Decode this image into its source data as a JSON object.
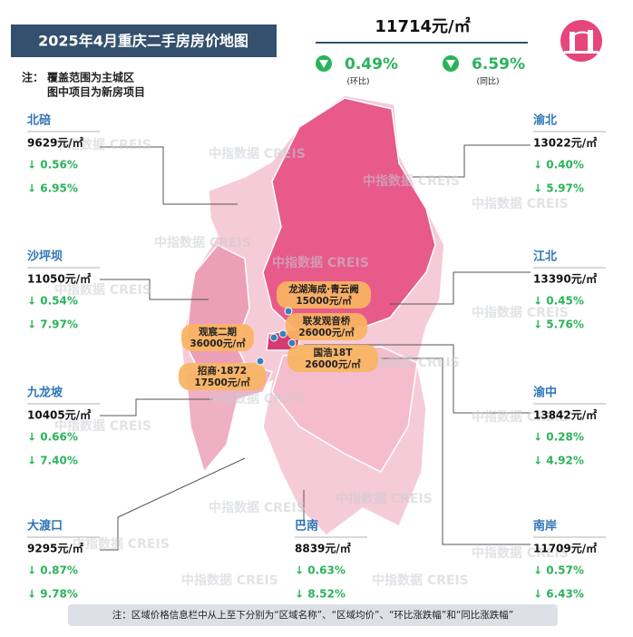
{
  "header": {
    "title": "2025年4月重庆二手房房价地图",
    "note_label": "注：",
    "notes": [
      "覆盖范围为主城区",
      "图中项目为新房项目"
    ]
  },
  "summary": {
    "price": "11714元/㎡",
    "mom": "0.49%",
    "mom_label": "(环比)",
    "yoy": "6.59%",
    "yoy_label": "(同比)"
  },
  "districts": [
    {
      "name": "北碚",
      "price": "9629元/㎡",
      "mom": "↓ 0.56%",
      "yoy": "↓ 6.95%"
    },
    {
      "name": "沙坪坝",
      "price": "11050元/㎡",
      "mom": "↓ 0.54%",
      "yoy": "↓ 7.97%"
    },
    {
      "name": "九龙坡",
      "price": "10405元/㎡",
      "mom": "↓ 0.66%",
      "yoy": "↓ 7.40%"
    },
    {
      "name": "大渡口",
      "price": "9295元/㎡",
      "mom": "↓ 0.87%",
      "yoy": "↓ 9.78%"
    },
    {
      "name": "渝北",
      "price": "13022元/㎡",
      "mom": "↓ 0.40%",
      "yoy": "↓ 5.97%"
    },
    {
      "name": "江北",
      "price": "13390元/㎡",
      "mom": "↓ 0.45%",
      "yoy": "↓ 5.76%"
    },
    {
      "name": "渝中",
      "price": "13842元/㎡",
      "mom": "↓ 0.28%",
      "yoy": "↓ 4.92%"
    },
    {
      "name": "南岸",
      "price": "11709元/㎡",
      "mom": "↓ 0.57%",
      "yoy": "↓ 6.43%"
    },
    {
      "name": "巴南",
      "price": "8839元/㎡",
      "mom": "↓ 0.63%",
      "yoy": "↓ 8.52%"
    }
  ],
  "projects": [
    {
      "name": "龙湖海成·青云阙",
      "price": "15000元/㎡"
    },
    {
      "name": "联发观音桥",
      "price": "26000元/㎡"
    },
    {
      "name": "观宸二期",
      "price": "36000元/㎡"
    },
    {
      "name": "国浩18T",
      "price": "26000元/㎡"
    },
    {
      "name": "招商·1872",
      "price": "17500元/㎡"
    }
  ],
  "footer": "注：区域价格信息栏中从上至下分别为“区域名称”、“区域均价”、“环比涨跌幅”和“同比涨跌幅”",
  "watermark": "中指数据 CREIS"
}
